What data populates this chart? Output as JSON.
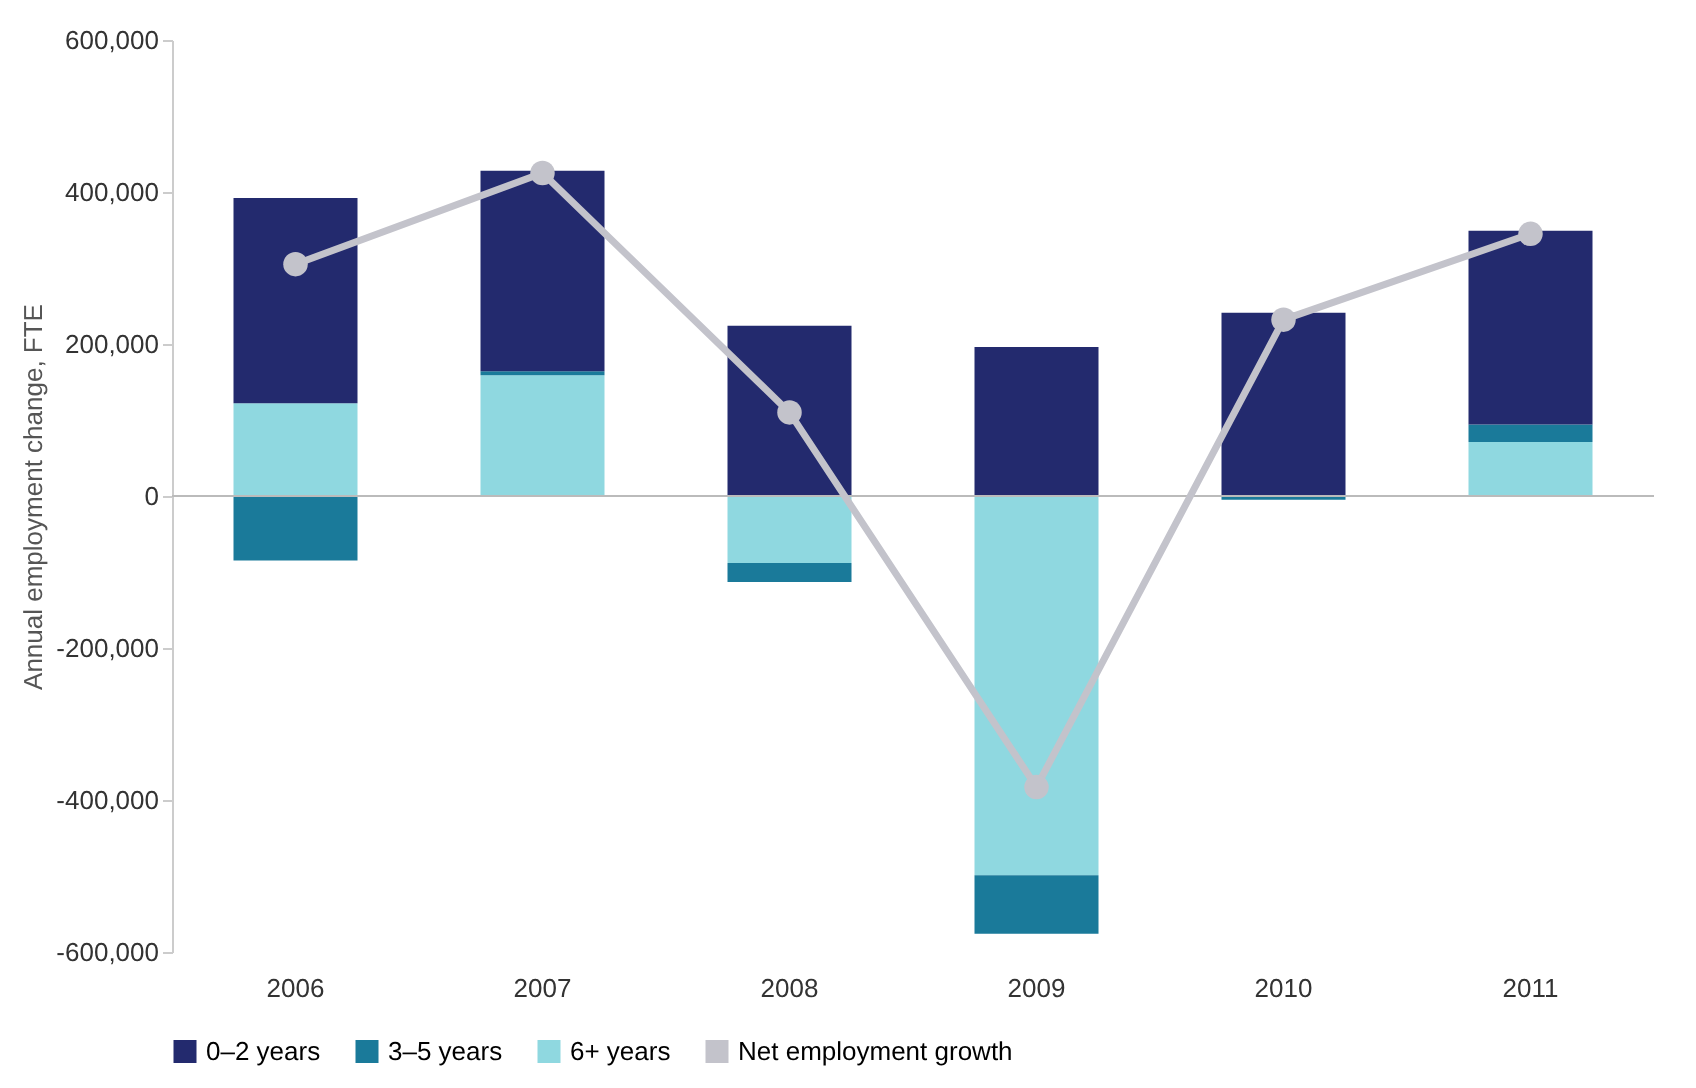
{
  "chart_data": {
    "type": "bar",
    "stacked": true,
    "ylabel": "Annual employment change, FTE",
    "categories": [
      "2006",
      "2007",
      "2008",
      "2009",
      "2010",
      "2011"
    ],
    "series": [
      {
        "name": "6+ years",
        "color": "#8fd8e0",
        "values": [
          122000,
          159000,
          -88000,
          -499000,
          0,
          71000
        ]
      },
      {
        "name": "3–5 years",
        "color": "#1a7a9a",
        "values": [
          -85000,
          5000,
          -25000,
          -77000,
          -5000,
          23000
        ]
      },
      {
        "name": "0–2 years",
        "color": "#232a6e",
        "values": [
          270000,
          264000,
          224000,
          196000,
          241000,
          255000
        ]
      },
      {
        "name": "Net employment growth",
        "type": "line",
        "color": "#c3c3cb",
        "marker": "circle",
        "values": [
          305000,
          425000,
          110000,
          -383000,
          232000,
          345000
        ]
      }
    ],
    "ylim": [
      -600000,
      600000
    ],
    "yticks": [
      {
        "value": -600000,
        "label": "-600,000"
      },
      {
        "value": -400000,
        "label": "-400,000"
      },
      {
        "value": -200000,
        "label": "-200,000"
      },
      0,
      {
        "value": 200000,
        "label": "200,000"
      },
      {
        "value": 400000,
        "label": "400,000"
      },
      {
        "value": 600000,
        "label": "600,000"
      }
    ],
    "ref_lines": [
      {
        "axis": "y",
        "value": 0,
        "color": "#bbbbbb"
      }
    ],
    "grid": false,
    "legend": "bottom"
  }
}
